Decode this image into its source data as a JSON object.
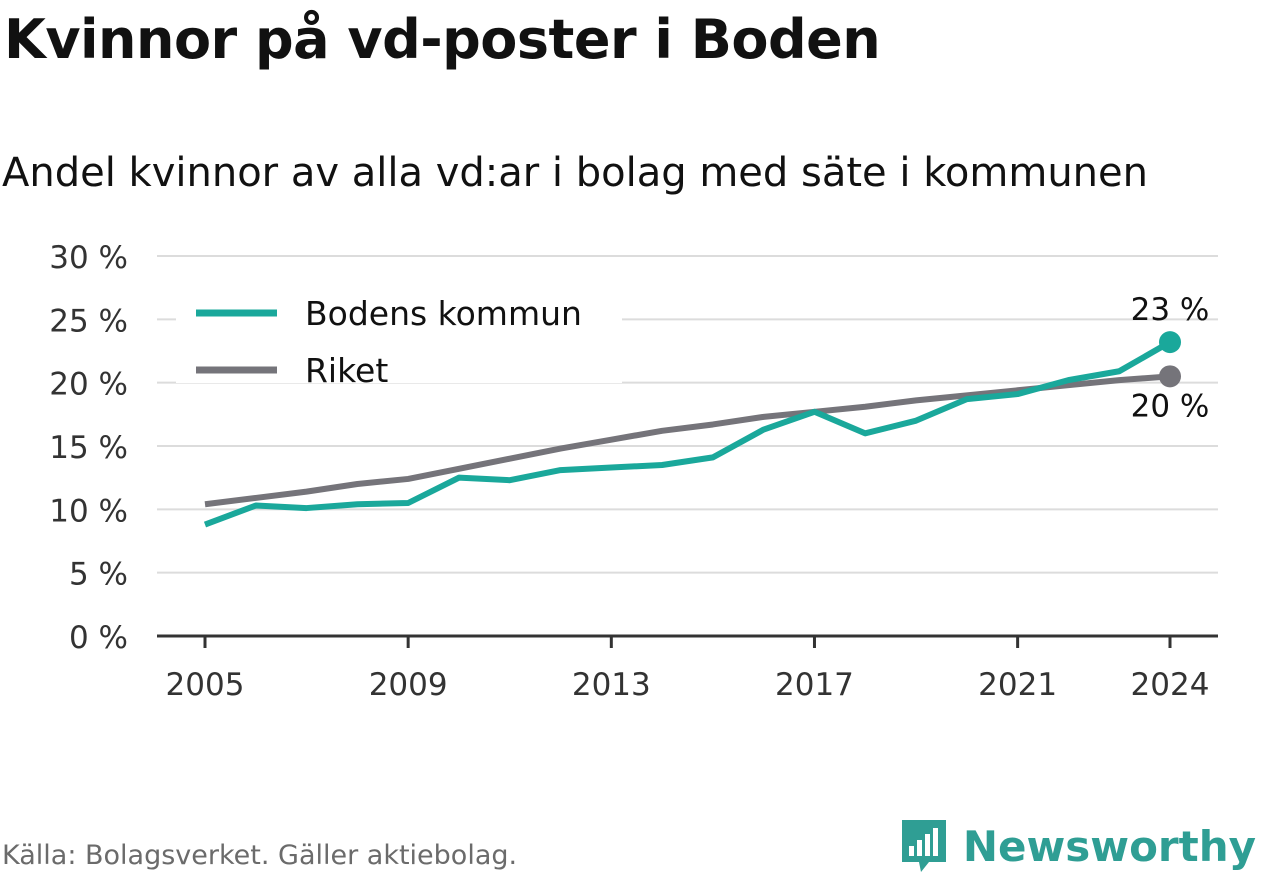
{
  "title": "Kvinnor på vd-poster i Boden",
  "subtitle": "Andel kvinnor av alla vd:ar i bolag med säte i kommunen",
  "source": "Källa: Bolagsverket. Gäller aktiebolag.",
  "brand": {
    "name": "Newsworthy",
    "icon": "bar-chart-speech-bubble-icon",
    "color": "#2f9e94"
  },
  "chart_data": {
    "type": "line",
    "x": [
      2005,
      2006,
      2007,
      2008,
      2009,
      2010,
      2011,
      2012,
      2013,
      2014,
      2015,
      2016,
      2017,
      2018,
      2019,
      2020,
      2021,
      2022,
      2023,
      2024
    ],
    "xticks": [
      "2005",
      "2009",
      "2013",
      "2017",
      "2021",
      "2024"
    ],
    "yticks": [
      "0 %",
      "5 %",
      "10 %",
      "15 %",
      "20 %",
      "25 %",
      "30 %"
    ],
    "ylim": [
      0,
      30
    ],
    "grid": true,
    "legend": "top-left",
    "series": [
      {
        "name": "Bodens kommun",
        "color": "#1aa89b",
        "values": [
          8.8,
          10.3,
          10.1,
          10.4,
          10.5,
          12.5,
          12.3,
          13.1,
          13.3,
          13.5,
          14.1,
          16.3,
          17.7,
          16.0,
          17.0,
          18.7,
          19.1,
          20.2,
          20.9,
          23.2
        ],
        "end_label": "23 %"
      },
      {
        "name": "Riket",
        "color": "#75747a",
        "values": [
          10.4,
          10.9,
          11.4,
          12.0,
          12.4,
          13.2,
          14.0,
          14.8,
          15.5,
          16.2,
          16.7,
          17.3,
          17.7,
          18.1,
          18.6,
          19.0,
          19.4,
          19.8,
          20.2,
          20.5
        ],
        "end_label": "20 %"
      }
    ]
  }
}
